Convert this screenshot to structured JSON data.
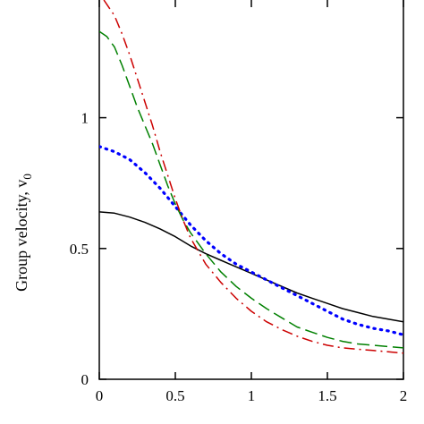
{
  "chart_data": {
    "type": "line",
    "ylabel": "Group velocity, v",
    "ylabel_subscript": "0",
    "xlabel": "",
    "xlim": [
      0,
      2
    ],
    "ylim": [
      0,
      1.45
    ],
    "x_ticks": [
      {
        "value": 0,
        "label": "0"
      },
      {
        "value": 0.5,
        "label": "0.5"
      },
      {
        "value": 1,
        "label": "1"
      },
      {
        "value": 1.5,
        "label": "1.5"
      },
      {
        "value": 2,
        "label": "2"
      }
    ],
    "y_ticks": [
      {
        "value": 0,
        "label": "0"
      },
      {
        "value": 0.5,
        "label": "0.5"
      },
      {
        "value": 1,
        "label": "1"
      }
    ],
    "grid": false,
    "series": [
      {
        "style": "solid",
        "color": "#000000",
        "x": [
          0,
          0.1,
          0.2,
          0.3,
          0.4,
          0.5,
          0.6,
          0.7,
          0.8,
          0.9,
          1.0,
          1.1,
          1.2,
          1.3,
          1.4,
          1.5,
          1.6,
          1.7,
          1.8,
          1.9,
          2.0
        ],
        "y": [
          0.64,
          0.635,
          0.62,
          0.6,
          0.575,
          0.545,
          0.51,
          0.48,
          0.455,
          0.43,
          0.405,
          0.38,
          0.355,
          0.33,
          0.31,
          0.29,
          0.27,
          0.255,
          0.24,
          0.23,
          0.22
        ]
      },
      {
        "style": "dotted",
        "color": "#0000ff",
        "x": [
          0,
          0.1,
          0.2,
          0.3,
          0.4,
          0.5,
          0.6,
          0.7,
          0.8,
          0.9,
          1.0,
          1.1,
          1.2,
          1.3,
          1.4,
          1.5,
          1.6,
          1.7,
          1.8,
          1.9,
          2.0
        ],
        "y": [
          0.89,
          0.87,
          0.84,
          0.79,
          0.73,
          0.66,
          0.59,
          0.53,
          0.48,
          0.44,
          0.41,
          0.38,
          0.35,
          0.32,
          0.29,
          0.26,
          0.23,
          0.21,
          0.195,
          0.185,
          0.17
        ]
      },
      {
        "style": "dashed",
        "color": "#008000",
        "x": [
          0,
          0.05,
          0.1,
          0.15,
          0.2,
          0.25,
          0.3,
          0.35,
          0.4,
          0.45,
          0.5,
          0.55,
          0.6,
          0.7,
          0.8,
          0.9,
          1.0,
          1.1,
          1.2,
          1.3,
          1.4,
          1.5,
          1.6,
          1.7,
          1.8,
          1.9,
          2.0
        ],
        "y": [
          1.33,
          1.31,
          1.27,
          1.2,
          1.12,
          1.04,
          0.97,
          0.9,
          0.82,
          0.74,
          0.67,
          0.61,
          0.56,
          0.48,
          0.41,
          0.355,
          0.31,
          0.27,
          0.235,
          0.2,
          0.18,
          0.16,
          0.145,
          0.135,
          0.13,
          0.125,
          0.12
        ]
      },
      {
        "style": "dashdot",
        "color": "#cc0000",
        "x": [
          0.03,
          0.1,
          0.15,
          0.2,
          0.25,
          0.3,
          0.35,
          0.4,
          0.45,
          0.5,
          0.55,
          0.6,
          0.7,
          0.8,
          0.9,
          1.0,
          1.1,
          1.2,
          1.3,
          1.4,
          1.5,
          1.6,
          1.7,
          1.8,
          1.9,
          2.0
        ],
        "y": [
          1.45,
          1.39,
          1.32,
          1.24,
          1.15,
          1.06,
          0.97,
          0.87,
          0.78,
          0.69,
          0.61,
          0.54,
          0.44,
          0.37,
          0.31,
          0.26,
          0.22,
          0.19,
          0.165,
          0.145,
          0.13,
          0.12,
          0.115,
          0.11,
          0.105,
          0.1
        ]
      }
    ]
  }
}
